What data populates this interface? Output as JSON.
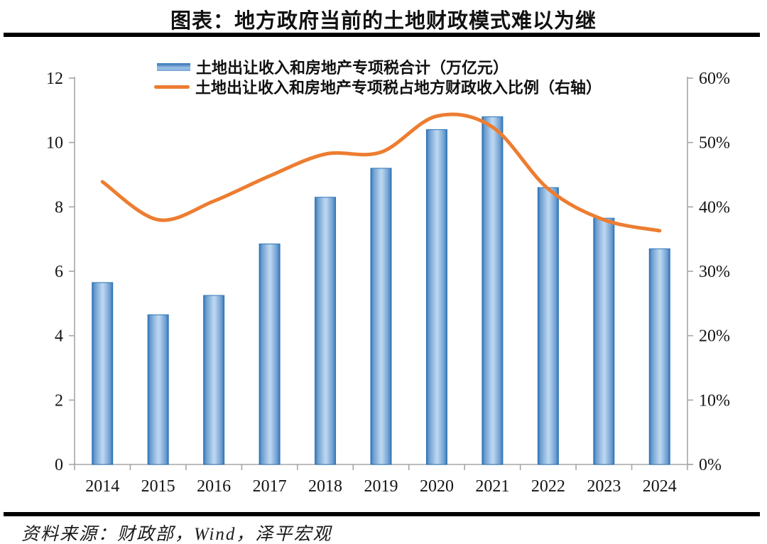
{
  "header": {
    "title": "图表：地方政府当前的土地财政模式难以为继"
  },
  "legend": [
    {
      "label": "土地出让收入和房地产专项税合计（万亿元）",
      "swatch": "bar-swatch"
    },
    {
      "label": "土地出让收入和房地产专项税占地方财政收入比例（右轴）",
      "swatch": "line-swatch"
    }
  ],
  "footer": {
    "source": "资料来源：财政部，Wind，泽平宏观"
  },
  "colors": {
    "bar_edge": "#2e75b6",
    "bar_mid": "#6b9bcf",
    "bar_center": "#b9d5ef",
    "line": "#ed7d31",
    "axis": "#a6a6a6",
    "text": "#141414",
    "rule": "#000000"
  },
  "chart_data": {
    "type": "bar+line combo",
    "title": "图表：地方政府当前的土地财政模式难以为继",
    "categories": [
      "2014",
      "2015",
      "2016",
      "2017",
      "2018",
      "2019",
      "2020",
      "2021",
      "2022",
      "2023",
      "2024"
    ],
    "series": [
      {
        "name": "土地出让收入和房地产专项税合计（万亿元）",
        "type": "bar",
        "axis": "left",
        "values": [
          5.65,
          4.65,
          5.25,
          6.85,
          8.3,
          9.2,
          10.4,
          10.8,
          8.6,
          7.65,
          6.7
        ]
      },
      {
        "name": "土地出让收入和房地产专项税占地方财政收入比例（右轴）",
        "type": "line",
        "axis": "right",
        "unit": "%",
        "values": [
          43.9,
          38.0,
          40.9,
          44.8,
          48.2,
          48.5,
          54.1,
          52.4,
          42.8,
          38.0,
          36.3
        ]
      }
    ],
    "left_axis": {
      "min": 0,
      "max": 12,
      "tick_step": 2,
      "ticks": [
        0,
        2,
        4,
        6,
        8,
        10,
        12
      ]
    },
    "right_axis": {
      "min": 0,
      "max": 60,
      "tick_step": 10,
      "tick_labels": [
        "0%",
        "10%",
        "20%",
        "30%",
        "40%",
        "50%",
        "60%"
      ]
    },
    "grid": false,
    "legend_position": "top",
    "source": "资料来源：财政部，Wind，泽平宏观"
  }
}
